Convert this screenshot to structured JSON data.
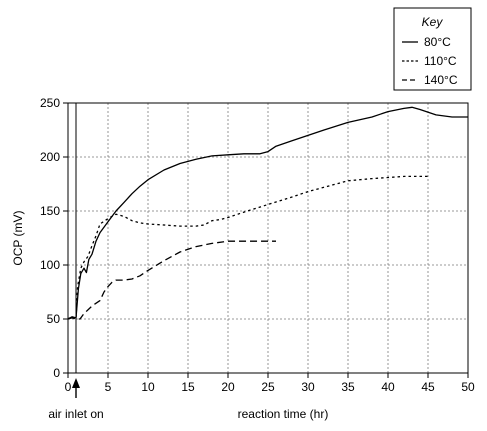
{
  "chart_data": {
    "type": "line",
    "title": "",
    "xlabel": "reaction time (hr)",
    "ylabel": "OCP (mV)",
    "xlim": [
      0,
      50
    ],
    "ylim": [
      0,
      250
    ],
    "x_ticks": [
      0,
      5,
      10,
      15,
      20,
      25,
      30,
      35,
      40,
      45,
      50
    ],
    "y_ticks": [
      0,
      50,
      100,
      150,
      200,
      250
    ],
    "grid": true,
    "legend": {
      "title": "Key",
      "placement": "top-right, above plot"
    },
    "annotations": [
      {
        "text": "air inlet on",
        "x": 1
      }
    ],
    "series": [
      {
        "name": "80°C",
        "style": "solid",
        "points": [
          [
            0,
            50
          ],
          [
            0.5,
            52
          ],
          [
            1,
            51
          ],
          [
            1.3,
            78
          ],
          [
            1.6,
            92
          ],
          [
            2,
            97
          ],
          [
            2.3,
            93
          ],
          [
            2.6,
            105
          ],
          [
            3,
            110
          ],
          [
            3.5,
            122
          ],
          [
            4,
            130
          ],
          [
            5,
            140
          ],
          [
            6,
            150
          ],
          [
            7,
            158
          ],
          [
            8,
            166
          ],
          [
            9,
            173
          ],
          [
            10,
            179
          ],
          [
            12,
            188
          ],
          [
            14,
            194
          ],
          [
            16,
            198
          ],
          [
            18,
            201
          ],
          [
            20,
            202
          ],
          [
            22,
            203
          ],
          [
            24,
            203
          ],
          [
            25,
            205
          ],
          [
            26,
            210
          ],
          [
            28,
            215
          ],
          [
            30,
            220
          ],
          [
            32,
            225
          ],
          [
            35,
            232
          ],
          [
            38,
            237
          ],
          [
            40,
            242
          ],
          [
            42,
            245
          ],
          [
            43,
            246
          ],
          [
            44,
            244
          ],
          [
            46,
            239
          ],
          [
            48,
            237
          ],
          [
            50,
            237
          ]
        ]
      },
      {
        "name": "110°C",
        "style": "dotted",
        "points": [
          [
            0,
            50
          ],
          [
            0.5,
            52
          ],
          [
            1,
            50
          ],
          [
            1.2,
            80
          ],
          [
            1.6,
            97
          ],
          [
            2,
            103
          ],
          [
            2.5,
            108
          ],
          [
            3,
            118
          ],
          [
            3.5,
            127
          ],
          [
            4,
            138
          ],
          [
            5,
            143
          ],
          [
            6,
            147
          ],
          [
            7,
            145
          ],
          [
            8,
            141
          ],
          [
            9,
            139
          ],
          [
            10,
            138
          ],
          [
            12,
            137
          ],
          [
            14,
            136
          ],
          [
            16,
            136
          ],
          [
            17,
            137
          ],
          [
            18,
            141
          ],
          [
            19,
            142
          ],
          [
            20,
            144
          ],
          [
            22,
            149
          ],
          [
            25,
            156
          ],
          [
            28,
            163
          ],
          [
            30,
            168
          ],
          [
            33,
            174
          ],
          [
            35,
            178
          ],
          [
            38,
            180
          ],
          [
            40,
            181
          ],
          [
            42,
            182
          ],
          [
            45,
            182
          ]
        ]
      },
      {
        "name": "140°C",
        "style": "dashed",
        "points": [
          [
            0,
            50
          ],
          [
            0.5,
            51
          ],
          [
            1,
            50
          ],
          [
            1.5,
            50
          ],
          [
            2,
            55
          ],
          [
            3,
            62
          ],
          [
            4,
            67
          ],
          [
            4.5,
            75
          ],
          [
            5,
            80
          ],
          [
            5.5,
            84
          ],
          [
            6,
            86
          ],
          [
            7,
            86
          ],
          [
            8,
            87
          ],
          [
            9,
            90
          ],
          [
            10,
            95
          ],
          [
            12,
            104
          ],
          [
            14,
            112
          ],
          [
            16,
            117
          ],
          [
            18,
            120
          ],
          [
            20,
            122
          ],
          [
            22,
            122
          ],
          [
            24,
            122
          ],
          [
            26,
            122
          ]
        ]
      }
    ]
  }
}
